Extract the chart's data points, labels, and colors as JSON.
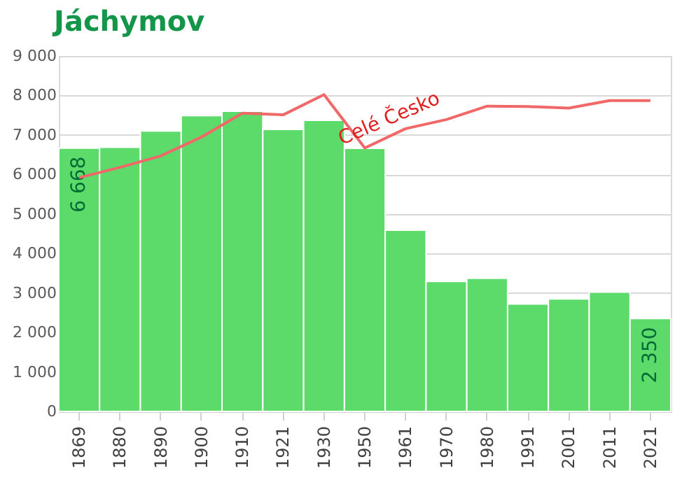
{
  "chart_data": {
    "type": "bar",
    "title": "Jáchymov",
    "categories": [
      "1869",
      "1880",
      "1890",
      "1900",
      "1910",
      "1921",
      "1930",
      "1950",
      "1961",
      "1970",
      "1980",
      "1991",
      "2001",
      "2011",
      "2021"
    ],
    "series": [
      {
        "color": "#5cdb6a",
        "values": [
          6668,
          6690,
          7100,
          7490,
          7600,
          7140,
          7370,
          6660,
          4590,
          3290,
          3370,
          2720,
          2850,
          3020,
          2350
        ],
        "value_labels": [
          "6 668",
          null,
          null,
          null,
          null,
          null,
          null,
          null,
          null,
          null,
          null,
          null,
          null,
          null,
          "2 350"
        ]
      },
      {
        "type": "line",
        "name": "Celé Česko",
        "color": "#f06868",
        "values": [
          5920,
          6180,
          6470,
          6950,
          7550,
          7510,
          8020,
          6670,
          7160,
          7390,
          7730,
          7720,
          7680,
          7870,
          7870
        ]
      }
    ],
    "ylim": [
      0,
      9000
    ],
    "yticks": [
      {
        "value": 0,
        "label": "0"
      },
      {
        "value": 1000,
        "label": "1 000"
      },
      {
        "value": 2000,
        "label": "2 000"
      },
      {
        "value": 3000,
        "label": "3 000"
      },
      {
        "value": 4000,
        "label": "4 000"
      },
      {
        "value": 5000,
        "label": "5 000"
      },
      {
        "value": 6000,
        "label": "6 000"
      },
      {
        "value": 7000,
        "label": "7 000"
      },
      {
        "value": 8000,
        "label": "8 000"
      },
      {
        "value": 9000,
        "label": "9 000"
      }
    ],
    "grid": "y",
    "marker": "none",
    "line_style": "solid"
  }
}
